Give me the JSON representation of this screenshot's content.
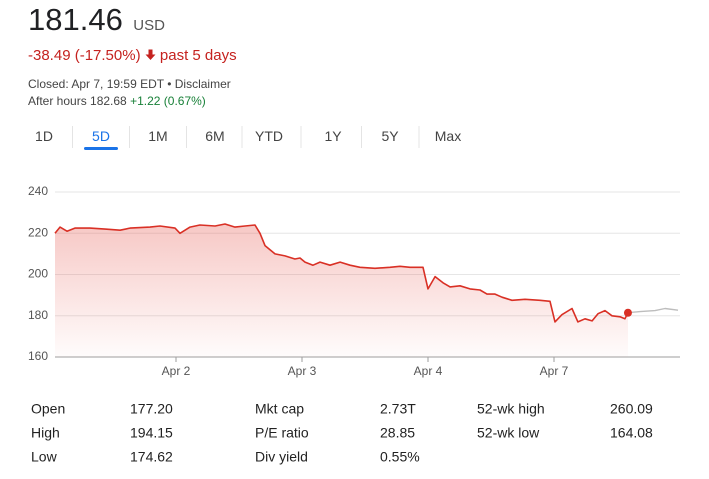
{
  "header": {
    "price": "181.46",
    "currency": "USD",
    "change": "-38.49 (-17.50%)",
    "period": "past 5 days",
    "closed": "Closed: Apr 7, 19:59 EDT",
    "separator": "•",
    "disclaimer": "Disclaimer",
    "after_hours": "After hours 182.68",
    "after_hours_change": "+1.22 (0.67%)"
  },
  "tabs": [
    "1D",
    "5D",
    "1M",
    "6M",
    "YTD",
    "1Y",
    "5Y",
    "Max"
  ],
  "selected_tab": "5D",
  "chart_data": {
    "type": "line",
    "xlim": [
      0,
      5
    ],
    "xticks": [
      {
        "value": 1,
        "label": "Apr 2"
      },
      {
        "value": 2,
        "label": "Apr 3"
      },
      {
        "value": 3,
        "label": "Apr 4"
      },
      {
        "value": 4,
        "label": "Apr 7"
      }
    ],
    "ylim": [
      160,
      240
    ],
    "yticks": [
      160,
      180,
      200,
      220,
      240
    ],
    "grid": true,
    "series": [
      {
        "color": "#d93025",
        "x": [
          0.04,
          0.079,
          0.135,
          0.198,
          0.317,
          0.437,
          0.556,
          0.635,
          0.794,
          0.873,
          0.992,
          1.032,
          1.111,
          1.19,
          1.31,
          1.389,
          1.468,
          1.548,
          1.627,
          1.667,
          1.706,
          1.786,
          1.865,
          1.944,
          1.984,
          2.024,
          2.087,
          2.143,
          2.222,
          2.302,
          2.381,
          2.46,
          2.579,
          2.698,
          2.778,
          2.857,
          2.96,
          3.0,
          3.056,
          3.119,
          3.175,
          3.254,
          3.333,
          3.413,
          3.468,
          3.532,
          3.587,
          3.667,
          3.77,
          3.889,
          3.968,
          4.008,
          4.063,
          4.143,
          4.19,
          4.246,
          4.302,
          4.349,
          4.405,
          4.46,
          4.524,
          4.563,
          4.587
        ],
        "values": [
          220,
          223,
          221,
          222.5,
          222.5,
          222,
          221.5,
          222.5,
          223,
          223.5,
          222.5,
          220,
          223,
          224,
          223.5,
          224.5,
          223,
          223.5,
          224,
          220,
          214,
          210,
          209,
          207.5,
          208,
          206,
          204.5,
          206,
          204.5,
          206,
          204.5,
          203.5,
          203,
          203.5,
          204,
          203.5,
          203.5,
          193,
          199,
          196,
          194,
          194.5,
          193,
          192.5,
          190.5,
          190.5,
          189,
          187.5,
          188,
          187.5,
          187,
          177,
          180.5,
          183.5,
          177,
          178.5,
          177.5,
          181,
          182.5,
          180,
          179.5,
          178.5,
          181.46
        ]
      },
      {
        "color": "#bdbdbd",
        "x": [
          4.587,
          4.683,
          4.802,
          4.881,
          4.984
        ],
        "values": [
          181.46,
          182,
          182.5,
          183.5,
          182.68
        ]
      }
    ]
  },
  "stats": [
    [
      "Open",
      "177.20",
      "Mkt cap",
      "2.73T",
      "52-wk high",
      "260.09"
    ],
    [
      "High",
      "194.15",
      "P/E ratio",
      "28.85",
      "52-wk low",
      "164.08"
    ],
    [
      "Low",
      "174.62",
      "Div yield",
      "0.55%"
    ]
  ]
}
